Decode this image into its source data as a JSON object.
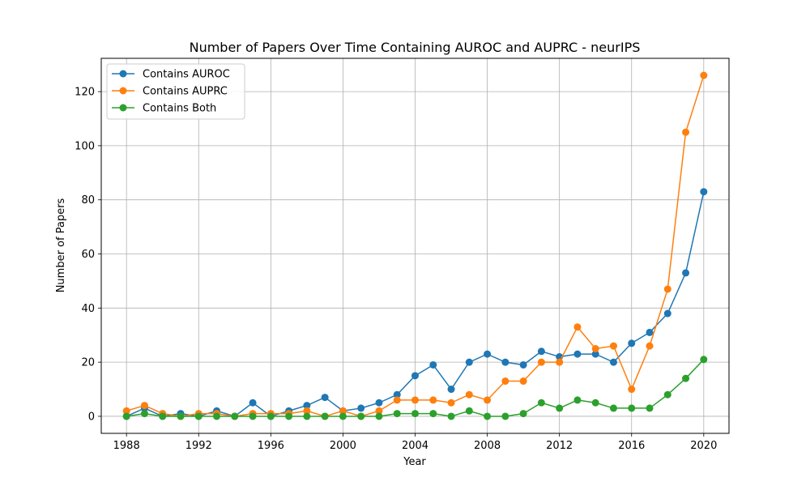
{
  "chart_data": {
    "type": "line",
    "title": "Number of Papers Over Time Containing AUROC and AUPRC - neurIPS",
    "xlabel": "Year",
    "ylabel": "Number of Papers",
    "xlim": [
      1986.6,
      2021.4
    ],
    "ylim": [
      -6.3,
      132.3
    ],
    "xticks": [
      1988,
      1992,
      1996,
      2000,
      2004,
      2008,
      2012,
      2016,
      2020
    ],
    "yticks": [
      0,
      20,
      40,
      60,
      80,
      100,
      120
    ],
    "grid": true,
    "legend_position": "top-left",
    "x": [
      1988,
      1989,
      1990,
      1991,
      1992,
      1993,
      1994,
      1995,
      1996,
      1997,
      1998,
      1999,
      2000,
      2001,
      2002,
      2003,
      2004,
      2005,
      2006,
      2007,
      2008,
      2009,
      2010,
      2011,
      2012,
      2013,
      2014,
      2015,
      2016,
      2017,
      2018,
      2019,
      2020
    ],
    "series": [
      {
        "name": "Contains AUROC",
        "color": "#1f77b4",
        "values": [
          0,
          3,
          0,
          1,
          0,
          2,
          0,
          5,
          0,
          2,
          4,
          7,
          2,
          3,
          5,
          8,
          15,
          19,
          10,
          20,
          23,
          20,
          19,
          24,
          22,
          23,
          23,
          20,
          27,
          31,
          38,
          53,
          83
        ]
      },
      {
        "name": "Contains AUPRC",
        "color": "#ff7f0e",
        "values": [
          2,
          4,
          1,
          0,
          1,
          1,
          0,
          1,
          1,
          1,
          2,
          0,
          2,
          0,
          2,
          6,
          6,
          6,
          5,
          8,
          6,
          13,
          13,
          20,
          20,
          33,
          25,
          26,
          10,
          26,
          47,
          105,
          126
        ]
      },
      {
        "name": "Contains Both",
        "color": "#2ca02c",
        "values": [
          0,
          1,
          0,
          0,
          0,
          0,
          0,
          0,
          0,
          0,
          0,
          0,
          0,
          0,
          0,
          1,
          1,
          1,
          0,
          2,
          0,
          0,
          1,
          5,
          3,
          6,
          5,
          3,
          3,
          3,
          8,
          14,
          21
        ]
      }
    ]
  }
}
